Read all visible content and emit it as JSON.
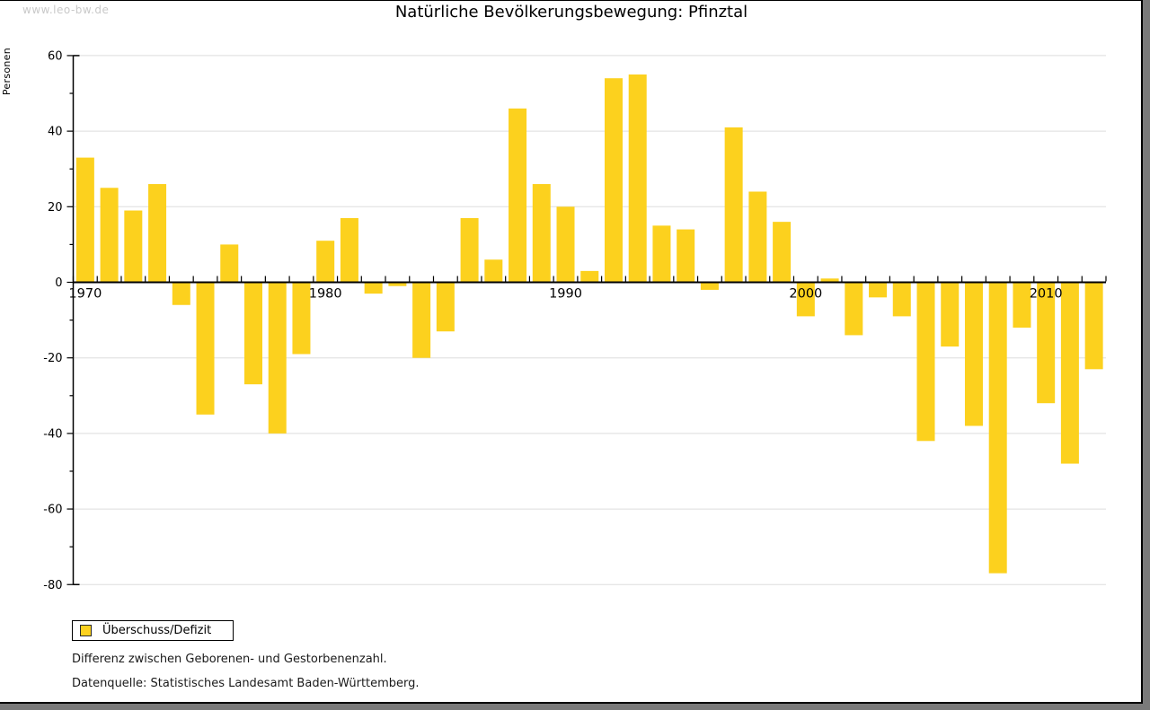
{
  "watermark": "www.leo-bw.de",
  "title": "Natürliche Bevölkerungsbewegung: Pfinztal",
  "legend": {
    "label": "Überschuss/Defizit",
    "swatch_color": "#fcd11e"
  },
  "footnotes": {
    "line1": "Differenz zwischen Geborenen- und Gestorbenenzahl.",
    "line2": "Datenquelle: Statistisches Landesamt Baden-Württemberg."
  },
  "chart_data": {
    "type": "bar",
    "title": "Natürliche Bevölkerungsbewegung: Pfinztal",
    "xlabel": "",
    "ylabel": "Personen",
    "categories": [
      "1970",
      "1971",
      "1972",
      "1973",
      "1974",
      "1975",
      "1976",
      "1977",
      "1978",
      "1979",
      "1980",
      "1981",
      "1982",
      "1983",
      "1984",
      "1985",
      "1986",
      "1987",
      "1988",
      "1989",
      "1990",
      "1991",
      "1992",
      "1993",
      "1994",
      "1995",
      "1996",
      "1997",
      "1998",
      "1999",
      "2000",
      "2001",
      "2002",
      "2003",
      "2004",
      "2005",
      "2006",
      "2007",
      "2008",
      "2009",
      "2010",
      "2011",
      "2012"
    ],
    "values": [
      33,
      25,
      19,
      26,
      -6,
      -35,
      10,
      -27,
      -40,
      -19,
      11,
      17,
      -3,
      -1,
      -20,
      -13,
      17,
      6,
      46,
      26,
      20,
      3,
      54,
      55,
      15,
      14,
      -2,
      41,
      24,
      16,
      -9,
      1,
      -14,
      -4,
      -9,
      -42,
      -17,
      -38,
      -77,
      -12,
      -32,
      -48,
      -23
    ],
    "series_name": "Überschuss/Defizit",
    "ylim": [
      -80,
      60
    ],
    "ytick_major_step": 20,
    "ytick_minor_step": 10,
    "ytick_labels": [
      "60",
      "40",
      "20",
      "0",
      "-20",
      "-40",
      "-60",
      "-80"
    ],
    "xtick_decade_labels": [
      "1970",
      "1980",
      "1990",
      "2000",
      "2010"
    ],
    "bar_color": "#fcd11e",
    "grid": true,
    "gridline_color": "#dedede",
    "legend_position": "bottom-left"
  }
}
